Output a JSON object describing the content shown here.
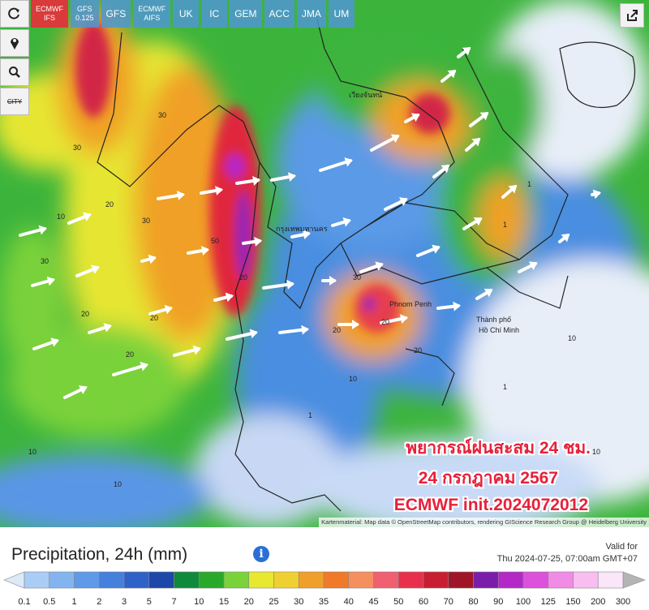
{
  "toolbar": {
    "city": "CITY",
    "models": [
      {
        "lines": [
          "ECMWF",
          "IFS"
        ],
        "active": true
      },
      {
        "lines": [
          "GFS",
          "0.125"
        ],
        "active": false
      },
      {
        "lines": [
          "GFS"
        ],
        "active": false
      },
      {
        "lines": [
          "ECMWF",
          "AIFS"
        ],
        "active": false
      },
      {
        "lines": [
          "UK"
        ],
        "active": false
      },
      {
        "lines": [
          "IC"
        ],
        "active": false
      },
      {
        "lines": [
          "GEM"
        ],
        "active": false
      },
      {
        "lines": [
          "ACC"
        ],
        "active": false
      },
      {
        "lines": [
          "JMA"
        ],
        "active": false
      },
      {
        "lines": [
          "UM"
        ],
        "active": false
      }
    ]
  },
  "overlay": {
    "line1": "พยากรณ์ฝนสะสม 24 ชม.",
    "line2": "24 กรกฎาคม 2567",
    "line3": "ECMWF init.2024072012"
  },
  "map": {
    "cities": [
      "กรุงเทพมหานคร",
      "Phnom Penh",
      "Thành phố",
      "Hồ Chí Minh",
      "เวียงจันทน์"
    ],
    "contour_labels": [
      "30",
      "30",
      "20",
      "30",
      "50",
      "20",
      "10",
      "20",
      "30",
      "20",
      "20",
      "10",
      "30",
      "20",
      "20",
      "10",
      "1",
      "1",
      "10",
      "1",
      "20",
      "10",
      "1",
      "10"
    ],
    "attribution": "Kartenmaterial: Map data © OpenStreetMap contributors, rendering GIScience Research Group @ Heidelberg University"
  },
  "legend": {
    "title": "Precipitation, 24h (mm)",
    "valid_label": "Valid for",
    "valid_time": "Thu 2024-07-25, 07:00am GMT+07",
    "labels": [
      "0.1",
      "0.5",
      "1",
      "2",
      "3",
      "5",
      "7",
      "10",
      "15",
      "20",
      "25",
      "30",
      "35",
      "40",
      "45",
      "50",
      "60",
      "70",
      "80",
      "90",
      "100",
      "125",
      "150",
      "200",
      "300"
    ],
    "colors": [
      "#a9cdf5",
      "#84b4f0",
      "#5e9ae8",
      "#4580dc",
      "#2f62c8",
      "#1d47a8",
      "#0f8a3c",
      "#2aa82a",
      "#7ad23a",
      "#e8e830",
      "#f0d030",
      "#f0a02a",
      "#f07a28",
      "#f49060",
      "#f06070",
      "#e8304c",
      "#c81e32",
      "#a01428",
      "#7a1eaa",
      "#b428c8",
      "#dc50dc",
      "#f08ce6",
      "#f8bef0",
      "#fae6f8"
    ],
    "low_color": "#dceaf8",
    "high_color": "#b4b4b4"
  }
}
